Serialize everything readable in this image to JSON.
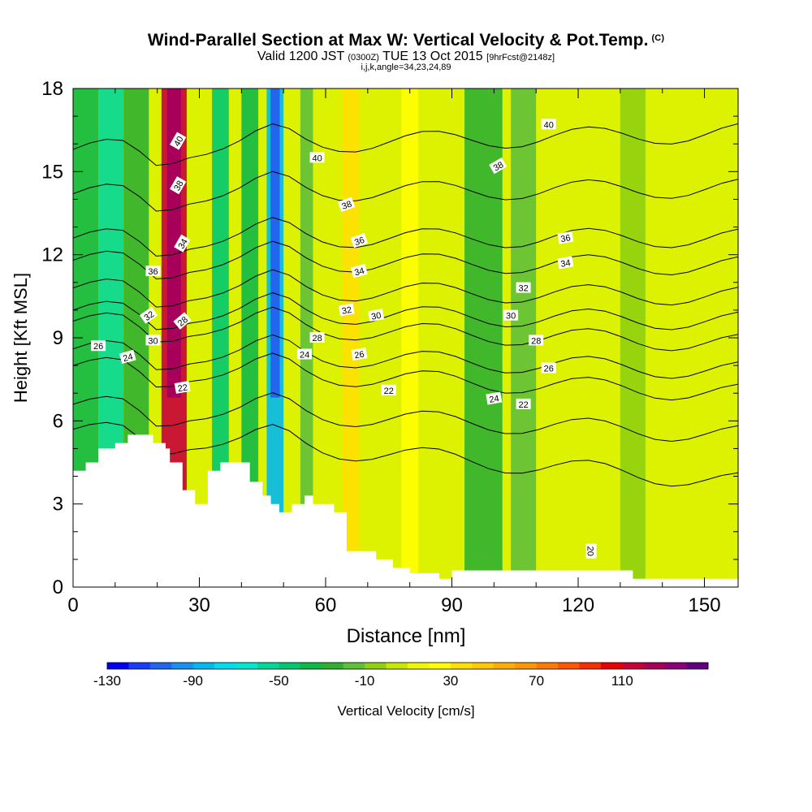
{
  "header": {
    "title": "Wind-Parallel Section at Max W: Vertical Velocity & Pot.Temp.",
    "copyright_mark": "(C)",
    "valid_prefix": "Valid 1200 JST",
    "valid_utc": "(0300Z)",
    "valid_date": "TUE 13 Oct 2015",
    "forecast": "[9hrFcst@2148z]",
    "params": "i,j,k,angle=34,23,24,89"
  },
  "colors": {
    "background_field": "#ddf200",
    "terrain": "#ffffff",
    "contour_line": "#000000"
  },
  "chart_data": {
    "type": "heatmap",
    "xlabel": "Distance [nm]",
    "ylabel": "Height [Kft MSL]",
    "xlim": [
      0,
      158
    ],
    "ylim": [
      0,
      18
    ],
    "x_ticks": [
      0,
      30,
      60,
      90,
      120,
      150
    ],
    "y_ticks": [
      0,
      3,
      6,
      9,
      12,
      15,
      18
    ],
    "colorbar": {
      "label": "Vertical Velocity [cm/s]",
      "ticks": [
        -130,
        -90,
        -50,
        -10,
        30,
        70,
        110
      ],
      "levels": [
        -130,
        -120,
        -110,
        -100,
        -90,
        -80,
        -70,
        -60,
        -50,
        -40,
        -30,
        -20,
        -10,
        0,
        10,
        20,
        30,
        40,
        50,
        60,
        70,
        80,
        90,
        100,
        110,
        120,
        130,
        140
      ],
      "colors": [
        "#0000f5",
        "#1a3cf5",
        "#2266ee",
        "#1a90f0",
        "#00b8f0",
        "#00dcf0",
        "#00e8d0",
        "#00d89a",
        "#00c870",
        "#10b848",
        "#30b030",
        "#60c038",
        "#90d010",
        "#c8e800",
        "#f0f800",
        "#ffff00",
        "#ffe000",
        "#ffc800",
        "#ffb000",
        "#ff9800",
        "#ff7a00",
        "#ff5800",
        "#f53000",
        "#e80000",
        "#c8003a",
        "#a8005a",
        "#8a0078",
        "#600080"
      ]
    },
    "velocity_bands": [
      {
        "x_range": [
          0,
          6
        ],
        "w": -40
      },
      {
        "x_range": [
          6,
          12
        ],
        "w": -60
      },
      {
        "x_range": [
          12,
          18
        ],
        "w": -30
      },
      {
        "x_range": [
          21,
          27
        ],
        "w": 110
      },
      {
        "x_range": [
          33,
          37
        ],
        "w": -50
      },
      {
        "x_range": [
          40,
          44
        ],
        "w": -40
      },
      {
        "x_range": [
          46,
          50
        ],
        "w": -90
      },
      {
        "x_range": [
          54,
          57
        ],
        "w": -20
      },
      {
        "x_range": [
          64,
          68
        ],
        "w": 30
      },
      {
        "x_range": [
          78,
          82
        ],
        "w": 20
      },
      {
        "x_range": [
          93,
          102
        ],
        "w": -30
      },
      {
        "x_range": [
          104,
          110
        ],
        "w": -20
      },
      {
        "x_range": [
          130,
          136
        ],
        "w": -10
      }
    ],
    "terrain_profile": {
      "x": [
        0,
        3,
        3,
        6,
        6,
        10,
        10,
        13,
        13,
        19,
        19,
        22,
        22,
        23,
        23,
        26,
        26,
        29,
        29,
        32,
        32,
        35,
        35,
        42,
        42,
        45,
        45,
        47,
        47,
        49,
        49,
        52,
        52,
        55,
        55,
        57,
        57,
        62,
        62,
        65,
        65,
        72,
        72,
        76,
        76,
        80,
        80,
        87,
        87,
        90,
        90,
        133,
        133,
        140,
        140,
        158
      ],
      "height": [
        4.2,
        4.2,
        4.5,
        4.5,
        5.0,
        5.0,
        5.2,
        5.2,
        5.5,
        5.5,
        5.2,
        5.2,
        5.0,
        5.0,
        4.5,
        4.5,
        3.5,
        3.5,
        3.0,
        3.0,
        4.2,
        4.2,
        4.5,
        4.5,
        3.8,
        3.8,
        3.3,
        3.3,
        3.0,
        3.0,
        2.7,
        2.7,
        3.0,
        3.0,
        3.3,
        3.3,
        3.0,
        3.0,
        2.7,
        2.7,
        1.3,
        1.3,
        1.0,
        1.0,
        0.7,
        0.7,
        0.5,
        0.5,
        0.3,
        0.3,
        0.6,
        0.6,
        0.3,
        0.3,
        0.3,
        0.3
      ]
    },
    "theta_contours": [
      {
        "theta": 20,
        "height_left": 5.7,
        "height_right": 3.8
      },
      {
        "theta": 22,
        "height_left": 6.6,
        "height_right": 5.5
      },
      {
        "theta": 24,
        "height_left": 8.0,
        "height_right": 7.0
      },
      {
        "theta": 26,
        "height_left": 8.6,
        "height_right": 7.8
      },
      {
        "theta": 28,
        "height_left": 9.6,
        "height_right": 8.8
      },
      {
        "theta": 30,
        "height_left": 10.0,
        "height_right": 9.6
      },
      {
        "theta": 32,
        "height_left": 10.8,
        "height_right": 10.5
      },
      {
        "theta": 34,
        "height_left": 11.8,
        "height_right": 11.6
      },
      {
        "theta": 36,
        "height_left": 12.6,
        "height_right": 12.6
      },
      {
        "theta": 38,
        "height_left": 14.2,
        "height_right": 14.4
      },
      {
        "theta": 40,
        "height_left": 15.8,
        "height_right": 16.4
      }
    ],
    "contour_labels": [
      {
        "text": "40",
        "x": 25,
        "y": 16.1,
        "rot": -60
      },
      {
        "text": "38",
        "x": 25,
        "y": 14.5,
        "rot": -60
      },
      {
        "text": "34",
        "x": 26,
        "y": 12.4,
        "rot": -60
      },
      {
        "text": "36",
        "x": 19,
        "y": 11.4,
        "rot": 0
      },
      {
        "text": "32",
        "x": 18,
        "y": 9.8,
        "rot": -35
      },
      {
        "text": "28",
        "x": 26,
        "y": 9.6,
        "rot": -40
      },
      {
        "text": "30",
        "x": 19,
        "y": 8.9,
        "rot": 0
      },
      {
        "text": "26",
        "x": 6,
        "y": 8.7,
        "rot": 0
      },
      {
        "text": "24",
        "x": 13,
        "y": 8.3,
        "rot": -15
      },
      {
        "text": "22",
        "x": 26,
        "y": 7.2,
        "rot": -10
      },
      {
        "text": "40",
        "x": 58,
        "y": 15.5,
        "rot": 0
      },
      {
        "text": "38",
        "x": 65,
        "y": 13.8,
        "rot": -20
      },
      {
        "text": "36",
        "x": 68,
        "y": 12.5,
        "rot": -20
      },
      {
        "text": "34",
        "x": 68,
        "y": 11.4,
        "rot": -15
      },
      {
        "text": "32",
        "x": 65,
        "y": 10.0,
        "rot": -10
      },
      {
        "text": "30",
        "x": 72,
        "y": 9.8,
        "rot": -10
      },
      {
        "text": "28",
        "x": 58,
        "y": 9.0,
        "rot": 0
      },
      {
        "text": "24",
        "x": 55,
        "y": 8.4,
        "rot": 0
      },
      {
        "text": "26",
        "x": 68,
        "y": 8.4,
        "rot": -10
      },
      {
        "text": "22",
        "x": 75,
        "y": 7.1,
        "rot": 0
      },
      {
        "text": "40",
        "x": 113,
        "y": 16.7,
        "rot": 0
      },
      {
        "text": "38",
        "x": 101,
        "y": 15.2,
        "rot": -30
      },
      {
        "text": "36",
        "x": 117,
        "y": 12.6,
        "rot": -10
      },
      {
        "text": "34",
        "x": 117,
        "y": 11.7,
        "rot": -10
      },
      {
        "text": "32",
        "x": 107,
        "y": 10.8,
        "rot": 0
      },
      {
        "text": "30",
        "x": 104,
        "y": 9.8,
        "rot": 0
      },
      {
        "text": "28",
        "x": 110,
        "y": 8.9,
        "rot": 0
      },
      {
        "text": "26",
        "x": 113,
        "y": 7.9,
        "rot": 0
      },
      {
        "text": "24",
        "x": 100,
        "y": 6.8,
        "rot": -10
      },
      {
        "text": "22",
        "x": 107,
        "y": 6.6,
        "rot": 0
      },
      {
        "text": "20",
        "x": 123,
        "y": 1.3,
        "rot": 90
      }
    ]
  }
}
